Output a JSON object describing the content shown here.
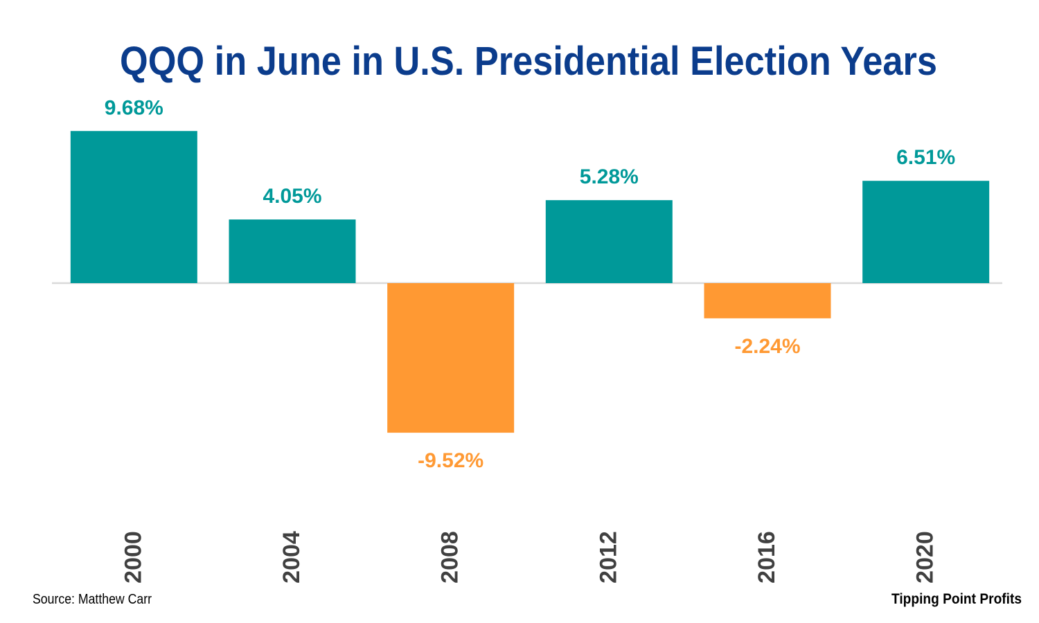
{
  "chart_data": {
    "type": "bar",
    "title": "QQQ in June in U.S. Presidential Election Years",
    "categories": [
      "2000",
      "2004",
      "2008",
      "2012",
      "2016",
      "2020"
    ],
    "values": [
      9.68,
      4.05,
      -9.52,
      5.28,
      -2.24,
      6.51
    ],
    "value_labels": [
      "9.68%",
      "4.05%",
      "-9.52%",
      "5.28%",
      "-2.24%",
      "6.51%"
    ],
    "ylim": [
      -15,
      10
    ],
    "grid": false,
    "legend": "none",
    "colors": {
      "positive": "#009999",
      "negative": "#FF9933",
      "title": "#0B3C8C",
      "axis_line": "#D9D9D9",
      "tick_text": "#404040",
      "footer_text": "#000000"
    }
  },
  "footer": {
    "source": "Source: Matthew Carr",
    "brand": "Tipping Point Profits"
  }
}
